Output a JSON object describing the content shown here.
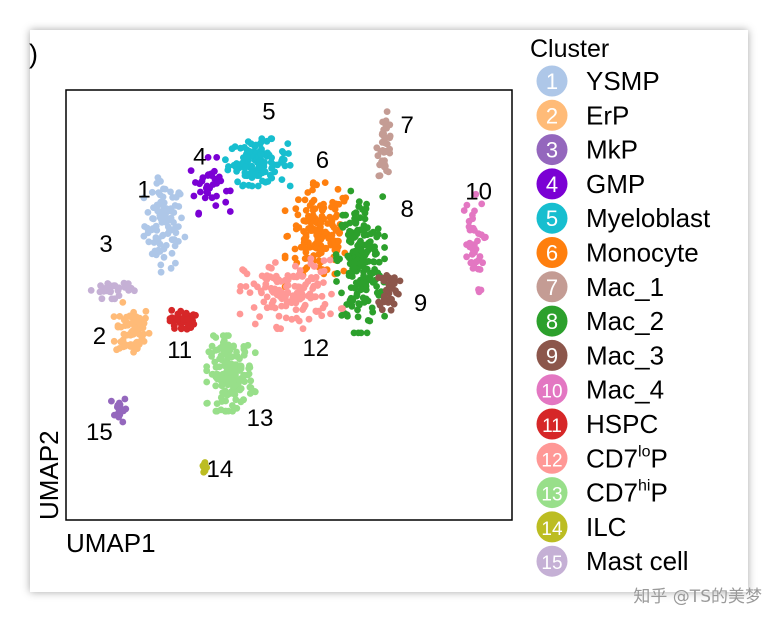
{
  "chart_data": {
    "type": "scatter",
    "panel_letter": ")",
    "xlabel": "UMAP1",
    "ylabel": "UMAP2",
    "legend_title": "Cluster",
    "legend_placement": "right",
    "series": [
      {
        "id": 1,
        "name": "YSMP",
        "color": "#aec7e8",
        "center": [
          -5.6,
          4.1
        ],
        "spread": [
          0.8,
          2.0
        ],
        "count": 95
      },
      {
        "id": 2,
        "name": "ErP",
        "color": "#ffbb78",
        "center": [
          -7.0,
          -1.3
        ],
        "spread": [
          0.7,
          1.2
        ],
        "count": 70
      },
      {
        "id": 3,
        "name": "MkP",
        "color": "#9467bd",
        "center": [
          -7.6,
          -5.3
        ],
        "spread": [
          0.3,
          0.6
        ],
        "count": 18
      },
      {
        "id": 4,
        "name": "GMP",
        "color": "#7b00d4",
        "center": [
          -3.6,
          6.1
        ],
        "spread": [
          0.8,
          1.2
        ],
        "count": 35
      },
      {
        "id": 5,
        "name": "Myeloblast",
        "color": "#17becf",
        "center": [
          -1.4,
          7.3
        ],
        "spread": [
          1.2,
          1.0
        ],
        "count": 110
      },
      {
        "id": 6,
        "name": "Monocyte",
        "color": "#ff7f0e",
        "center": [
          1.4,
          3.6
        ],
        "spread": [
          1.3,
          2.2
        ],
        "count": 150
      },
      {
        "id": 7,
        "name": "Mac_1",
        "color": "#c49c94",
        "center": [
          4.3,
          8.2
        ],
        "spread": [
          0.3,
          1.4
        ],
        "count": 40
      },
      {
        "id": 8,
        "name": "Mac_2",
        "color": "#2ca02c",
        "center": [
          3.2,
          2.2
        ],
        "spread": [
          0.9,
          3.0
        ],
        "count": 190
      },
      {
        "id": 9,
        "name": "Mac_3",
        "color": "#8c564b",
        "center": [
          4.5,
          0.8
        ],
        "spread": [
          0.4,
          1.0
        ],
        "count": 38
      },
      {
        "id": 10,
        "name": "Mac_4",
        "color": "#e377c2",
        "center": [
          8.2,
          3.0
        ],
        "spread": [
          0.5,
          2.2
        ],
        "count": 40
      },
      {
        "id": 11,
        "name": "HSPC",
        "color": "#d62728",
        "center": [
          -4.8,
          -0.8
        ],
        "spread": [
          0.5,
          0.5
        ],
        "count": 38
      },
      {
        "id": 12,
        "name": "CD7loP",
        "color": "#ff9896",
        "center": [
          0.1,
          0.6
        ],
        "spread": [
          1.9,
          1.5
        ],
        "count": 140
      },
      {
        "id": 13,
        "name": "CD7hiP",
        "color": "#98df8a",
        "center": [
          -2.6,
          -3.5
        ],
        "spread": [
          0.9,
          1.6
        ],
        "count": 170
      },
      {
        "id": 14,
        "name": "ILC",
        "color": "#bcbd22",
        "center": [
          -3.8,
          -8.3
        ],
        "spread": [
          0.1,
          0.4
        ],
        "count": 10
      },
      {
        "id": 15,
        "name": "Mast cell",
        "color": "#c5b0d5",
        "center": [
          -7.9,
          0.8
        ],
        "spread": [
          0.8,
          0.4
        ],
        "count": 30
      }
    ],
    "legend_labels": [
      {
        "id": "1",
        "text": "YSMP"
      },
      {
        "id": "2",
        "text": "ErP"
      },
      {
        "id": "3",
        "text": "MkP"
      },
      {
        "id": "4",
        "text": "GMP"
      },
      {
        "id": "5",
        "text": "Myeloblast"
      },
      {
        "id": "6",
        "text": "Monocyte"
      },
      {
        "id": "7",
        "text": "Mac_1"
      },
      {
        "id": "8",
        "text": "Mac_2"
      },
      {
        "id": "9",
        "text": "Mac_3"
      },
      {
        "id": "10",
        "text": "Mac_4"
      },
      {
        "id": "11",
        "text": "HSPC"
      },
      {
        "id": "12",
        "text": "CD7",
        "sup": "lo",
        "suffix": "P"
      },
      {
        "id": "13",
        "text": "CD7",
        "sup": "hi",
        "suffix": "P"
      },
      {
        "id": "14",
        "text": "ILC"
      },
      {
        "id": "15",
        "text": "Mast cell"
      }
    ],
    "annotations": [
      {
        "text": "1",
        "x": -6.5,
        "y": 5.5
      },
      {
        "text": "2",
        "x": -8.5,
        "y": -2.0
      },
      {
        "text": "3",
        "x": -8.2,
        "y": 2.7
      },
      {
        "text": "4",
        "x": -4.0,
        "y": 7.2
      },
      {
        "text": "5",
        "x": -0.9,
        "y": 9.5
      },
      {
        "text": "6",
        "x": 1.5,
        "y": 7.0
      },
      {
        "text": "7",
        "x": 5.3,
        "y": 8.8
      },
      {
        "text": "8",
        "x": 5.3,
        "y": 4.5
      },
      {
        "text": "9",
        "x": 5.9,
        "y": -0.3
      },
      {
        "text": "10",
        "x": 8.5,
        "y": 5.4
      },
      {
        "text": "11",
        "x": -4.9,
        "y": -2.7
      },
      {
        "text": "12",
        "x": 1.2,
        "y": -2.6
      },
      {
        "text": "13",
        "x": -1.3,
        "y": -6.2
      },
      {
        "text": "14",
        "x": -3.1,
        "y": -8.8
      },
      {
        "text": "15",
        "x": -8.5,
        "y": -6.9
      }
    ],
    "xlim": [
      -10,
      10
    ],
    "ylim": [
      -11,
      11
    ],
    "grid": false,
    "ticks": false
  },
  "watermark": "知乎 @TS的美梦"
}
